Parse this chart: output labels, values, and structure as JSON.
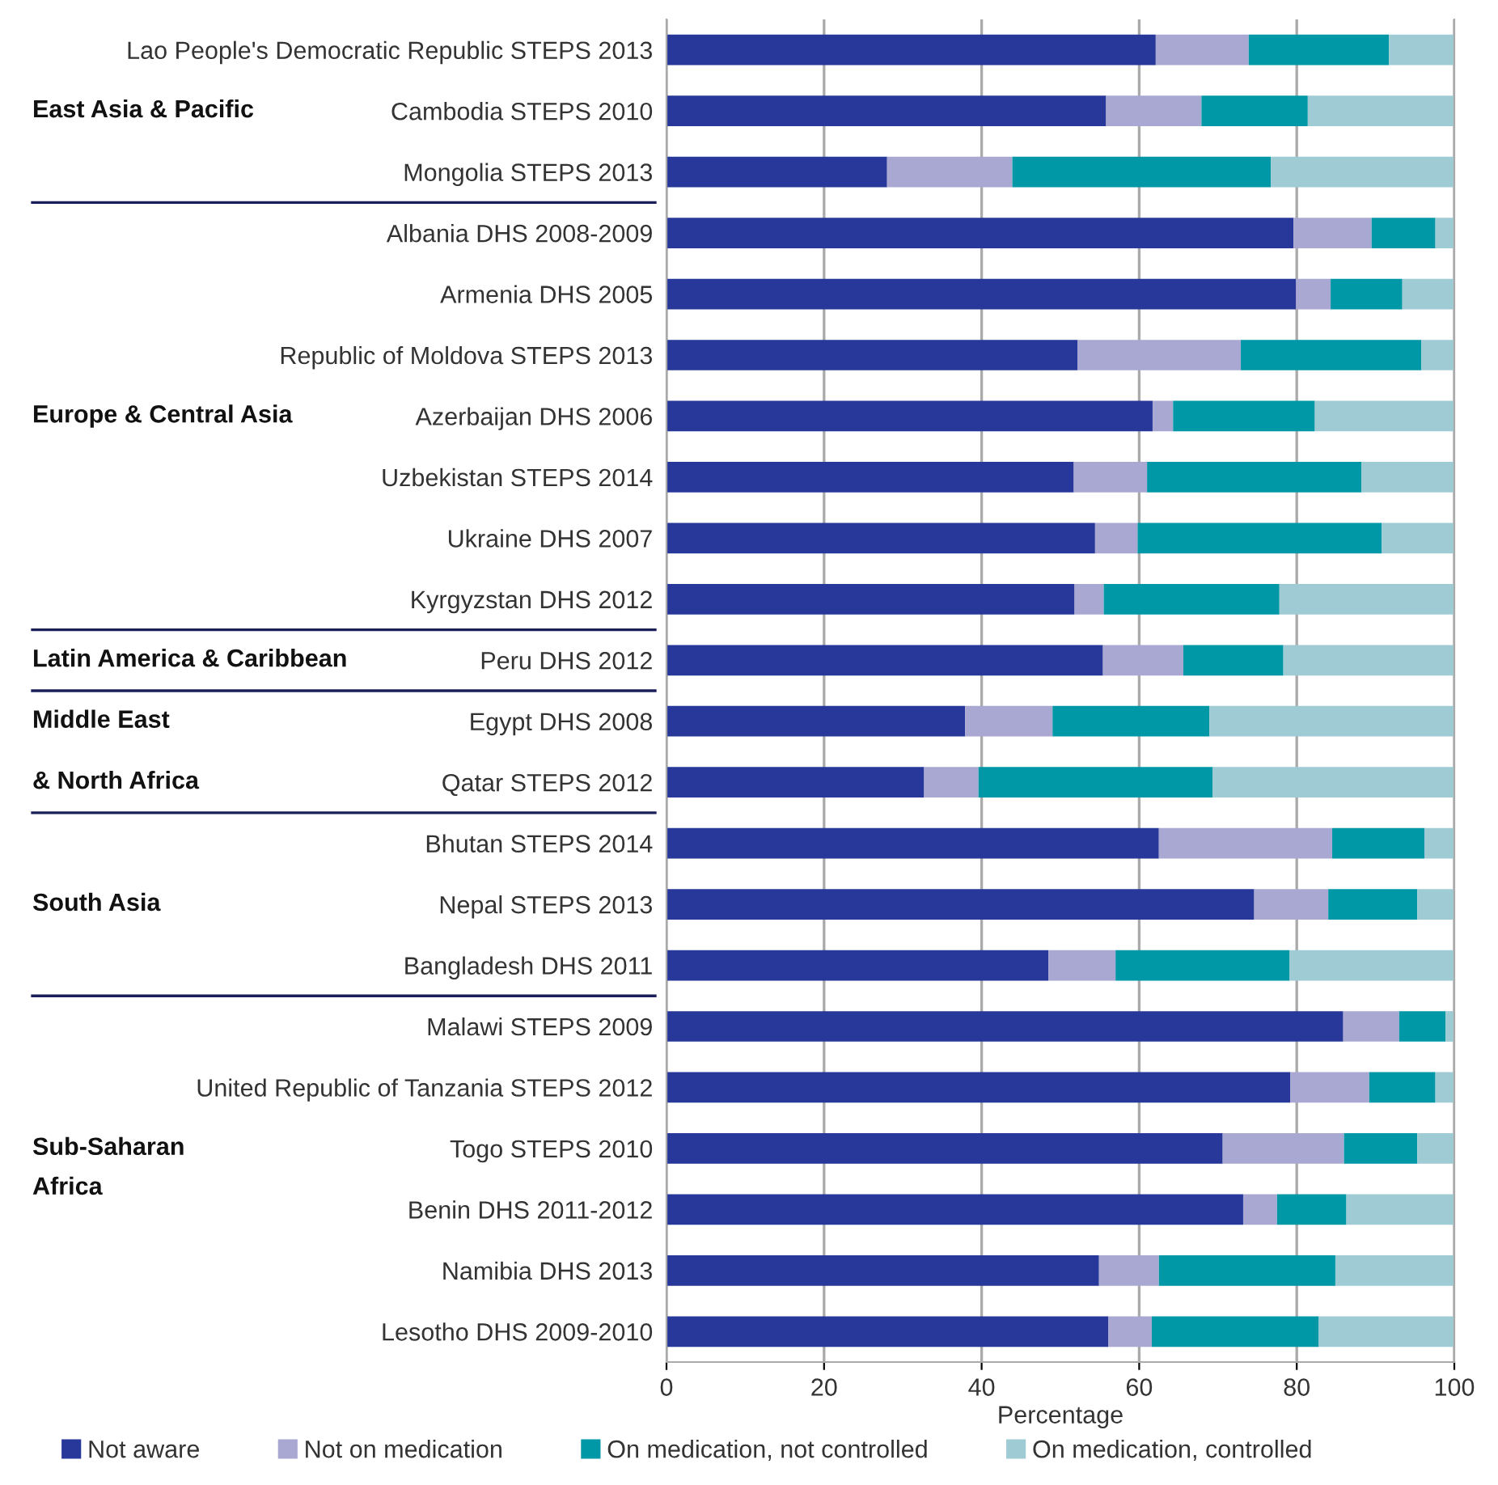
{
  "chart_data": {
    "type": "bar",
    "orientation": "horizontal",
    "stacked": true,
    "xlabel": "Percentage",
    "categories": [
      "Lao People's Democratic Republic STEPS 2013",
      "Cambodia STEPS 2010",
      "Mongolia STEPS 2013",
      "Albania DHS 2008-2009",
      "Armenia DHS 2005",
      "Republic of Moldova STEPS 2013",
      "Azerbaijan DHS 2006",
      "Uzbekistan STEPS 2014",
      "Ukraine DHS 2007",
      "Kyrgyzstan DHS 2012",
      "Peru DHS 2012",
      "Egypt DHS 2008",
      "Qatar STEPS 2012",
      "Bhutan STEPS 2014",
      "Nepal STEPS 2013",
      "Bangladesh DHS 2011",
      "Malawi STEPS 2009",
      "United Republic of Tanzania STEPS 2012",
      "Togo STEPS 2010",
      "Benin DHS 2011-2012",
      "Namibia DHS 2013",
      "Lesotho DHS 2009-2010"
    ],
    "series": [
      {
        "name": "Not aware",
        "color": "#27389a",
        "values": [
          62.1,
          55.8,
          28.0,
          79.6,
          79.9,
          52.2,
          61.7,
          51.7,
          54.4,
          51.8,
          55.4,
          37.9,
          32.7,
          62.5,
          74.6,
          48.5,
          85.9,
          79.2,
          70.6,
          73.2,
          54.9,
          56.1
        ]
      },
      {
        "name": "Not on medication",
        "color": "#a9a8d2",
        "values": [
          11.8,
          12.1,
          15.9,
          9.9,
          4.4,
          20.7,
          2.6,
          9.3,
          5.4,
          3.7,
          10.2,
          11.1,
          6.9,
          22.0,
          9.4,
          8.5,
          7.1,
          10.0,
          15.4,
          4.3,
          7.6,
          5.5
        ]
      },
      {
        "name": "On medication, not controlled",
        "color": "#0097a7",
        "values": [
          17.8,
          13.5,
          32.8,
          8.1,
          9.1,
          22.9,
          18.0,
          27.2,
          31.0,
          22.3,
          12.7,
          19.9,
          29.7,
          11.7,
          11.3,
          22.1,
          5.9,
          8.4,
          9.3,
          8.8,
          22.4,
          21.2
        ]
      },
      {
        "name": "On medication, controlled",
        "color": "#9fcbd4",
        "values": [
          8.3,
          18.6,
          23.3,
          2.4,
          6.6,
          4.2,
          17.7,
          11.8,
          9.2,
          22.2,
          21.7,
          31.1,
          30.7,
          3.8,
          4.7,
          20.9,
          1.1,
          2.4,
          4.7,
          13.7,
          15.1,
          17.2
        ]
      }
    ],
    "xlim": [
      0,
      100
    ],
    "xticks": [
      0,
      20,
      40,
      60,
      80,
      100
    ],
    "grid": "x",
    "legend": "bottom",
    "annotations": [
      "East Asia & Pacific",
      "Europe & Central Asia",
      "Latin America & Caribbean",
      "Middle East",
      "& North Africa",
      "South Asia",
      "Sub-Saharan",
      "Africa"
    ]
  }
}
